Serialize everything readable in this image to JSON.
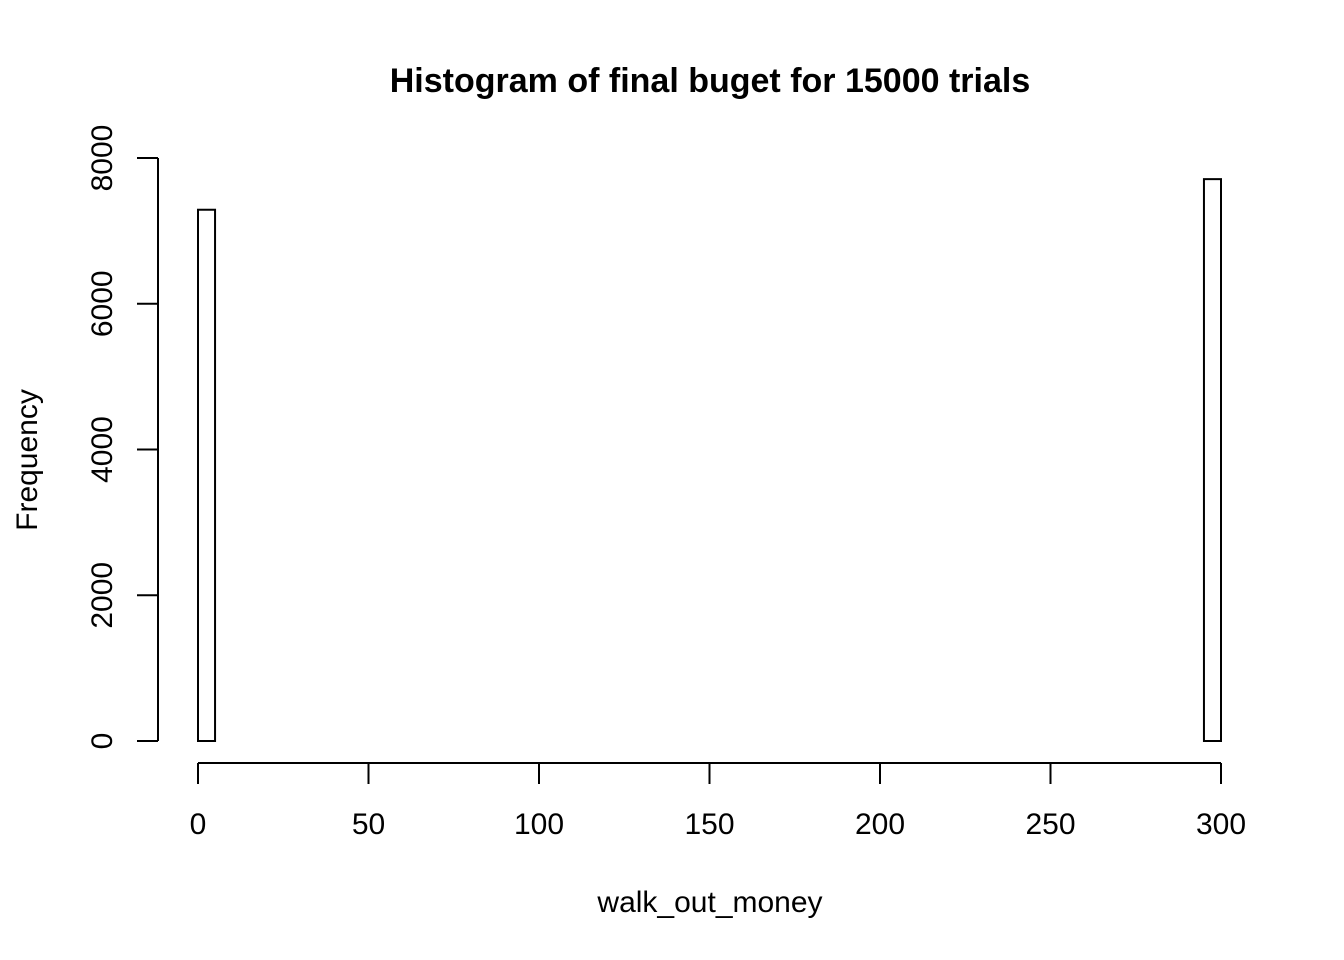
{
  "chart_data": {
    "type": "bar",
    "title": "Histogram of final buget for 15000 trials",
    "xlabel": "walk_out_money",
    "ylabel": "Frequency",
    "xlim": [
      0,
      300
    ],
    "ylim": [
      0,
      8000
    ],
    "x_ticks": [
      0,
      50,
      100,
      150,
      200,
      250,
      300
    ],
    "y_ticks": [
      0,
      2000,
      4000,
      6000,
      8000
    ],
    "bin_width": 5,
    "bins": [
      {
        "start": 0,
        "end": 5,
        "count": 7290
      },
      {
        "start": 295,
        "end": 300,
        "count": 7710
      }
    ],
    "fill_color": "#ffffff",
    "stroke_color": "#000000",
    "grid": false,
    "legend": false
  }
}
